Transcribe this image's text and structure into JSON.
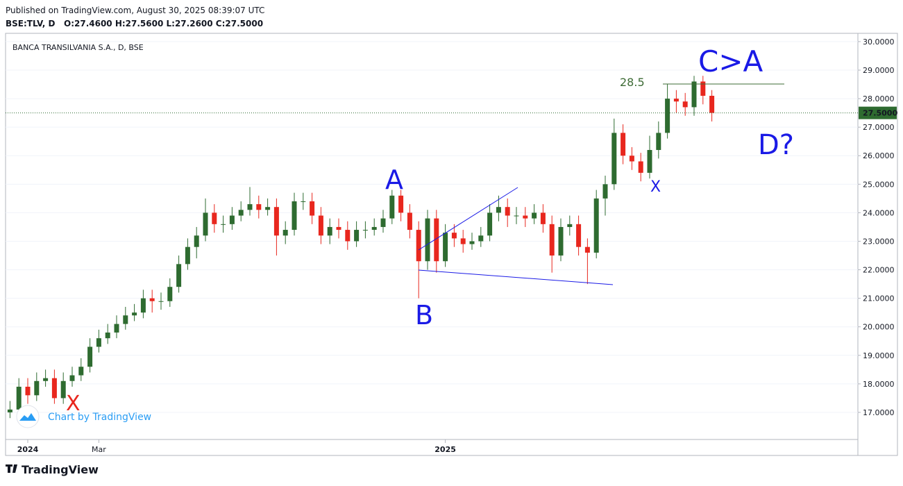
{
  "header": {
    "published": "Published on TradingView.com, August 30, 2025 08:39:07 UTC",
    "symbol": "BSE:TLV, D",
    "ohlc": "O:27.4600 H:27.5600 L:27.2600 C:27.5000"
  },
  "footer": {
    "brand": "TradingView",
    "watermark": "Chart by TradingView"
  },
  "chart_data": {
    "type": "candlestick",
    "title": "BANCA TRANSILVANIA S.A., D, BSE",
    "categories": [
      null,
      null,
      "2024",
      null,
      null,
      null,
      null,
      null,
      null,
      null,
      "Mar",
      null,
      null,
      null,
      null,
      null,
      null,
      null,
      null,
      null,
      null,
      null,
      null,
      null,
      null,
      null,
      null,
      null,
      null,
      null,
      null,
      null,
      null,
      null,
      null,
      null,
      null,
      null,
      null,
      null,
      null,
      null,
      null,
      null,
      null,
      null,
      null,
      null,
      null,
      "2025",
      null,
      null,
      null,
      null,
      null,
      null,
      null,
      null,
      null,
      null,
      null,
      null,
      null,
      null,
      null,
      null,
      null,
      null,
      null,
      null,
      null,
      null,
      null,
      null,
      null,
      null,
      null,
      null,
      null,
      null
    ],
    "open": [
      17.0,
      17.1,
      17.9,
      17.6,
      18.1,
      18.2,
      17.5,
      18.1,
      18.3,
      18.6,
      19.3,
      19.6,
      19.8,
      20.1,
      20.4,
      20.5,
      21.0,
      20.9,
      20.9,
      21.4,
      22.2,
      22.8,
      23.2,
      24.0,
      23.6,
      23.6,
      23.9,
      24.1,
      24.3,
      24.1,
      24.2,
      23.2,
      23.4,
      24.4,
      24.4,
      23.9,
      23.2,
      23.5,
      23.4,
      23.0,
      23.4,
      23.4,
      23.5,
      23.8,
      24.6,
      24.0,
      23.4,
      22.3,
      23.8,
      22.3,
      23.3,
      23.1,
      22.9,
      23.0,
      23.2,
      24.0,
      24.2,
      23.9,
      23.9,
      23.8,
      24.0,
      23.6,
      22.5,
      23.5,
      23.6,
      22.8,
      22.6,
      24.5,
      25.0,
      26.8,
      26.0,
      25.8,
      25.4,
      26.2,
      26.8,
      28.0,
      27.9,
      27.7,
      28.6,
      28.1
    ],
    "high": [
      17.4,
      18.2,
      18.2,
      18.4,
      18.5,
      18.5,
      18.4,
      18.6,
      18.9,
      19.6,
      19.9,
      20.1,
      20.4,
      20.7,
      20.8,
      21.3,
      21.3,
      21.2,
      21.7,
      22.5,
      23.1,
      23.5,
      24.5,
      24.3,
      23.9,
      24.2,
      24.4,
      24.9,
      24.6,
      24.5,
      24.5,
      23.7,
      24.7,
      24.7,
      24.7,
      24.2,
      23.8,
      23.8,
      23.7,
      23.7,
      23.7,
      23.8,
      24.1,
      24.8,
      24.8,
      24.3,
      23.7,
      24.1,
      24.1,
      23.6,
      23.6,
      23.4,
      23.3,
      23.5,
      24.3,
      24.6,
      24.5,
      24.2,
      24.2,
      24.3,
      24.3,
      23.9,
      23.8,
      23.9,
      23.9,
      23.1,
      24.8,
      25.3,
      27.3,
      27.1,
      26.3,
      26.1,
      26.7,
      27.2,
      28.5,
      28.3,
      28.2,
      28.8,
      28.8,
      28.3
    ],
    "low": [
      16.8,
      16.8,
      17.3,
      17.4,
      17.9,
      17.3,
      17.3,
      17.9,
      18.1,
      18.4,
      19.1,
      19.4,
      19.6,
      19.9,
      20.2,
      20.3,
      20.5,
      20.6,
      20.7,
      21.2,
      22.0,
      22.4,
      23.0,
      23.3,
      23.3,
      23.4,
      23.7,
      23.9,
      23.8,
      23.9,
      22.5,
      22.9,
      23.2,
      24.1,
      23.6,
      22.9,
      22.9,
      23.1,
      22.7,
      22.8,
      23.1,
      23.2,
      23.3,
      23.6,
      23.7,
      23.1,
      21.0,
      22.0,
      21.9,
      22.1,
      22.8,
      22.6,
      22.7,
      22.8,
      23.0,
      23.7,
      23.5,
      23.6,
      23.5,
      23.6,
      23.3,
      21.9,
      22.3,
      23.2,
      22.5,
      21.5,
      22.4,
      23.9,
      24.8,
      25.7,
      25.5,
      25.1,
      25.2,
      25.9,
      26.6,
      27.5,
      27.4,
      27.4,
      27.8,
      27.2
    ],
    "close": [
      17.1,
      17.9,
      17.6,
      18.1,
      18.2,
      17.5,
      18.1,
      18.3,
      18.6,
      19.3,
      19.6,
      19.8,
      20.1,
      20.4,
      20.5,
      21.0,
      20.9,
      20.9,
      21.4,
      22.2,
      22.8,
      23.2,
      24.0,
      23.6,
      23.6,
      23.9,
      24.1,
      24.3,
      24.1,
      24.2,
      23.2,
      23.4,
      24.4,
      24.4,
      23.9,
      23.2,
      23.5,
      23.4,
      23.0,
      23.4,
      23.4,
      23.5,
      23.8,
      24.6,
      24.0,
      23.4,
      22.3,
      23.8,
      22.3,
      23.3,
      23.1,
      22.9,
      23.0,
      23.2,
      24.0,
      24.2,
      23.9,
      23.9,
      23.8,
      24.0,
      23.6,
      22.5,
      23.5,
      23.6,
      22.8,
      22.6,
      24.5,
      25.0,
      26.8,
      26.0,
      25.8,
      25.4,
      26.2,
      26.8,
      28.0,
      27.9,
      27.7,
      28.6,
      28.1,
      27.5
    ],
    "up_color": "#2e6b30",
    "down_color": "#e8271e",
    "ylim": [
      16.05,
      30.29
    ],
    "yticks": [
      {
        "value": 17,
        "label": "17.0000"
      },
      {
        "value": 18,
        "label": "18.0000"
      },
      {
        "value": 19,
        "label": "19.0000"
      },
      {
        "value": 20,
        "label": "20.0000"
      },
      {
        "value": 21,
        "label": "21.0000"
      },
      {
        "value": 22,
        "label": "22.0000"
      },
      {
        "value": 23,
        "label": "23.0000"
      },
      {
        "value": 24,
        "label": "24.0000"
      },
      {
        "value": 25,
        "label": "25.0000"
      },
      {
        "value": 26,
        "label": "26.0000"
      },
      {
        "value": 27,
        "label": "27.0000"
      },
      {
        "value": 28,
        "label": "28.0000"
      },
      {
        "value": 29,
        "label": "29.0000"
      },
      {
        "value": 30,
        "label": "30.0000"
      }
    ],
    "last_price": {
      "value": 27.5,
      "label": "27.5000"
    },
    "annotations": [
      {
        "text": "C>A"
      },
      {
        "text": "D?"
      },
      {
        "text": "A"
      },
      {
        "text": "B"
      },
      {
        "text": "X"
      },
      {
        "text": "X"
      },
      {
        "text": "28.5"
      }
    ]
  }
}
